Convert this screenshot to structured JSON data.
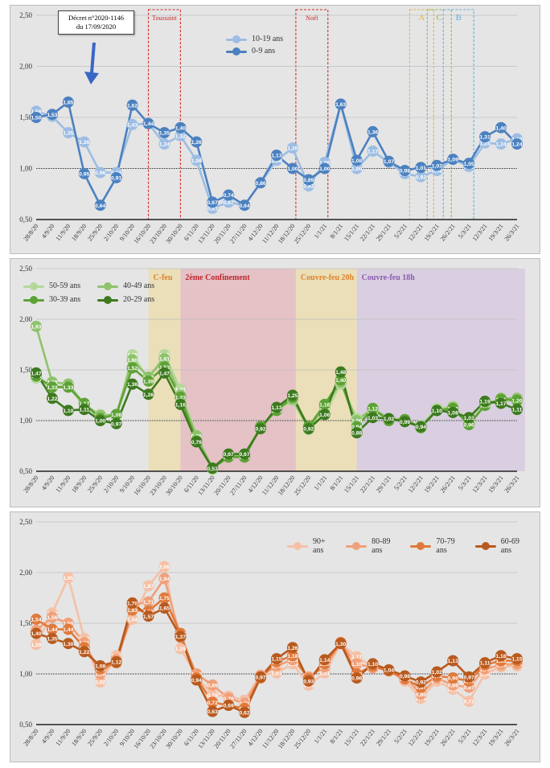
{
  "dates": [
    "28/8/20",
    "4/9/20",
    "11/9/20",
    "18/9/20",
    "25/9/20",
    "2/10/20",
    "9/10/20",
    "16/10/20",
    "23/10/20",
    "30/10/20",
    "6/11/20",
    "13/11/20",
    "20/11/20",
    "27/11/20",
    "4/12/20",
    "11/12/20",
    "18/12/20",
    "25/12/20",
    "1/1/21",
    "8/1/21",
    "15/1/21",
    "22/1/21",
    "29/1/21",
    "5/2/21",
    "12/2/21",
    "19/2/21",
    "26/2/21",
    "5/3/21",
    "12/3/21",
    "19/3/21",
    "26/3/21"
  ],
  "y_ticks": [
    "0,50",
    "1,00",
    "1,50",
    "2,00",
    "2,50"
  ],
  "colors": {
    "reference_line": "#444444",
    "grid": "#bfbfbf",
    "axis": "#222222"
  },
  "chart_data": [
    {
      "type": "line",
      "ylim": [
        0.5,
        2.5
      ],
      "reference_value": 1.0,
      "annotation": {
        "line1": "Décret n°2020-1146",
        "line2": "du 17/09/2020"
      },
      "periods": [
        {
          "label": "Toussaint",
          "from": 7.0,
          "to": 9.0,
          "style": "dashed",
          "color": "#cc2a2a"
        },
        {
          "label": "Noël",
          "from": 16.2,
          "to": 18.2,
          "style": "dashed",
          "color": "#cc2a2a"
        },
        {
          "label": "A",
          "from": 23.3,
          "to": 24.8,
          "style": "dashed",
          "color": "#e0b347"
        },
        {
          "label": "C",
          "from": 24.4,
          "to": 25.9,
          "style": "dashed",
          "color": "#8cb84a"
        },
        {
          "label": "B",
          "from": 25.4,
          "to": 27.3,
          "style": "dashed",
          "color": "#5ab0e0"
        }
      ],
      "series": [
        {
          "name": "10-19 ans",
          "color": "#9dbde3",
          "values": [
            1.56,
            1.51,
            1.35,
            1.26,
            0.96,
            0.96,
            1.43,
            1.44,
            1.24,
            1.32,
            1.08,
            0.61,
            0.67,
            0.64,
            0.86,
            1.08,
            1.2,
            0.83,
            1.06,
            1.63,
            1.0,
            1.17,
            1.06,
            0.95,
            0.92,
            0.98,
            1.09,
            1.02,
            1.25,
            1.24,
            1.29
          ],
          "labels": [
            "1,56",
            "1,51",
            "1,35",
            "1,26",
            "0,96",
            "0,96",
            "1,43",
            "1,44",
            "1,24",
            "1,32",
            "1,08",
            "0,61",
            "0,67",
            "0,64",
            "0,86",
            "1,08",
            "1,20",
            "0,83",
            "1,06",
            "1,63",
            "1,00",
            "1,17",
            "1,06",
            "0,95",
            "0,92",
            "0,98",
            "1,09",
            "1,02",
            "1,25",
            "1,24",
            "1,29"
          ]
        },
        {
          "name": "0-9 ans",
          "color": "#4c81c0",
          "values": [
            1.5,
            1.53,
            1.65,
            0.95,
            0.64,
            0.91,
            1.62,
            1.44,
            1.35,
            1.4,
            1.26,
            0.67,
            0.74,
            0.64,
            0.86,
            1.13,
            1.0,
            0.89,
            1.0,
            1.63,
            1.08,
            1.36,
            1.07,
            0.98,
            1.01,
            1.03,
            1.09,
            1.05,
            1.31,
            1.4,
            1.24
          ],
          "labels": [
            "1,50",
            "1,53",
            "1,65",
            "0,95",
            "0,64",
            "0,91",
            "1,62",
            "1,44",
            "1,35",
            "1,40",
            "1,26",
            "0,67",
            "0,74",
            "0,64",
            "0,86",
            "1,13",
            "1,00",
            "0,89",
            "1,00",
            "1,63",
            "1,08",
            "1,36",
            "1,07",
            "0,98",
            "1,01",
            "1,03",
            "1,09",
            "1,05",
            "1,31",
            "1,40",
            "1,24"
          ]
        }
      ]
    },
    {
      "type": "line",
      "ylim": [
        0.5,
        2.5
      ],
      "reference_value": 1.0,
      "periods": [
        {
          "label": "C-feu",
          "from": 7.0,
          "to": 9.0,
          "fill": "#eadfb8",
          "text_color": "#e0822a"
        },
        {
          "label": "2ème Confinement",
          "from": 9.0,
          "to": 16.2,
          "fill": "#e4c2c6",
          "text_color": "#c0262d"
        },
        {
          "label": "Couvre-feu 20h",
          "from": 16.2,
          "to": 20.0,
          "fill": "#eadfb8",
          "text_color": "#e0822a"
        },
        {
          "label": "Couvre-feu 18h",
          "from": 20.0,
          "to": 30.5,
          "fill": "#d9cfe0",
          "text_color": "#8a5cb0"
        }
      ],
      "series": [
        {
          "name": "50-59 ans",
          "color": "#b5d89a",
          "values": [
            1.42,
            1.33,
            1.35,
            1.13,
            1.06,
            1.03,
            1.65,
            1.41,
            1.65,
            1.31,
            0.85,
            0.52,
            0.67,
            0.67,
            0.94,
            1.1,
            1.2,
            0.91,
            1.06,
            1.36,
            1.02,
            1.1,
            1.01,
            1.0,
            0.95,
            1.12,
            1.14,
            0.98,
            1.16,
            1.2,
            1.19
          ],
          "labels": [
            "1,42",
            "1,33",
            "1,35",
            "1,13",
            "1,06",
            "1,03",
            "1,65",
            "1,41",
            "1,65",
            "1,31",
            "0,85",
            "0,52",
            "0,67",
            "0,67",
            "0,94",
            "1,10",
            "1,20",
            "0,91",
            "1,06",
            "1,36",
            "1,02",
            "1,10",
            "1,01",
            "1,00",
            "0,95",
            "1,12",
            "1,14",
            "0,98",
            "1,16",
            "1,20",
            "1,19"
          ]
        },
        {
          "name": "40-49 ans",
          "color": "#8fc26c",
          "values": [
            1.93,
            1.38,
            1.36,
            1.16,
            1.05,
            1.06,
            1.6,
            1.43,
            1.61,
            1.25,
            0.85,
            0.53,
            0.66,
            0.64,
            0.94,
            1.11,
            1.21,
            0.93,
            1.13,
            1.38,
            1.0,
            1.12,
            1.02,
            1.01,
            0.93,
            1.1,
            1.13,
            0.97,
            1.15,
            1.22,
            1.22
          ],
          "labels": [
            "1,93",
            "1,38",
            "1,36",
            "1,16",
            "1,05",
            "1,06",
            "1,60",
            "1,43",
            "1,61",
            "1,25",
            "0,85",
            "0,53",
            "0,66",
            "0,64",
            "0,94",
            "1,11",
            "1,21",
            "0,93",
            "1,13",
            "1,38",
            "1,00",
            "1,12",
            "1,02",
            "1,01",
            "0,93",
            "1,10",
            "1,13",
            "0,97",
            "1,15",
            "1,22",
            "1,22"
          ]
        },
        {
          "name": "30-39 ans",
          "color": "#5ea236",
          "values": [
            1.44,
            1.33,
            1.33,
            1.17,
            1.02,
            1.06,
            1.52,
            1.39,
            1.53,
            1.23,
            0.8,
            0.53,
            0.64,
            0.64,
            0.94,
            1.1,
            1.23,
            0.94,
            1.16,
            1.4,
            0.94,
            1.12,
            1.0,
            1.01,
            0.93,
            1.1,
            1.12,
            0.96,
            1.15,
            1.21,
            1.2
          ],
          "labels": [
            "1,44",
            "1,33",
            "1,33",
            "1,17",
            "1,02",
            "1,06",
            "1,52",
            "1,39",
            "1,53",
            "1,23",
            "0,80",
            "0,53",
            "0,64",
            "0,64",
            "0,94",
            "1,10",
            "1,23",
            "0,94",
            "1,16",
            "1,40",
            "0,94",
            "1,12",
            "1,00",
            "1,01",
            "0,93",
            "1,10",
            "1,12",
            "0,96",
            "1,15",
            "1,21",
            "1,20"
          ]
        },
        {
          "name": "20-29 ans",
          "color": "#3d7a1f",
          "values": [
            1.47,
            1.22,
            1.1,
            1.11,
            1.0,
            0.97,
            1.36,
            1.26,
            1.47,
            1.16,
            0.79,
            0.53,
            0.67,
            0.67,
            0.92,
            1.13,
            1.25,
            0.92,
            1.06,
            1.48,
            0.88,
            1.03,
            1.02,
            0.99,
            0.94,
            1.1,
            1.08,
            1.03,
            1.19,
            1.17,
            1.11
          ],
          "labels": [
            "1,47",
            "1,22",
            "1,10",
            "1,11",
            "1,00",
            "0,97",
            "1,36",
            "1,26",
            "1,47",
            "1,16",
            "0,79",
            "0,53",
            "0,67",
            "0,67",
            "0,92",
            "1,13",
            "1,25",
            "0,92",
            "1,06",
            "1,48",
            "0,88",
            "1,03",
            "1,02",
            "0,99",
            "0,94",
            "1,10",
            "1,08",
            "1,03",
            "1,19",
            "1,17",
            "1,11"
          ]
        }
      ]
    },
    {
      "type": "line",
      "ylim": [
        0.5,
        2.5
      ],
      "reference_value": 1.0,
      "series": [
        {
          "name": "90+ ans",
          "color": "#f5c1a6",
          "values": [
            1.29,
            1.6,
            1.95,
            1.35,
            0.92,
            1.18,
            1.54,
            1.87,
            2.06,
            1.25,
            0.98,
            0.79,
            0.78,
            0.74,
            0.99,
            1.01,
            1.1,
            0.89,
            1.01,
            1.3,
            1.17,
            1.07,
            1.03,
            0.93,
            0.76,
            0.93,
            0.85,
            0.73,
            1.0,
            1.07,
            1.08
          ],
          "labels": [
            "1,29",
            "1,60",
            "1,95",
            "1,35",
            "0,92",
            "1,18",
            "1,54",
            "1,87",
            "2,06",
            "1,25",
            "0,98",
            "0,79",
            "0,78",
            "0,74",
            "0,99",
            "1,01",
            "1,10",
            "0,89",
            "1,01",
            "1,30",
            "1,17",
            "1,07",
            "1,03",
            "0,93",
            "0,76",
            "0,93",
            "0,85",
            "0,73",
            "1,00",
            "1,07",
            "1,08"
          ]
        },
        {
          "name": "80-89 ans",
          "color": "#f0a07a",
          "values": [
            1.43,
            1.56,
            1.5,
            1.31,
            1.0,
            1.14,
            1.68,
            1.71,
            1.94,
            1.36,
            1.0,
            0.89,
            0.76,
            0.71,
            0.98,
            1.08,
            1.14,
            0.97,
            1.07,
            1.3,
            1.1,
            1.06,
            1.04,
            0.97,
            0.8,
            0.96,
            0.89,
            0.87,
            1.05,
            1.09,
            1.1
          ],
          "labels": [
            "1,43",
            "1,56",
            "1,50",
            "1,31",
            "1,00",
            "1,14",
            "1,68",
            "1,71",
            "1,94",
            "1,36",
            "1,00",
            "0,89",
            "0,76",
            "0,71",
            "0,98",
            "1,08",
            "1,14",
            "0,97",
            "1,07",
            "1,30",
            "1,10",
            "1,06",
            "1,04",
            "0,97",
            "0,80",
            "0,96",
            "0,89",
            "0,87",
            "1,05",
            "1,09",
            "1,10"
          ]
        },
        {
          "name": "70-79 ans",
          "color": "#e07a3c",
          "values": [
            1.54,
            1.44,
            1.44,
            1.26,
            1.05,
            1.11,
            1.63,
            1.62,
            1.75,
            1.4,
            0.96,
            0.72,
            0.69,
            0.66,
            0.96,
            1.12,
            1.18,
            0.95,
            1.1,
            1.31,
            1.0,
            1.08,
            1.03,
            0.95,
            0.87,
            0.98,
            0.96,
            0.93,
            1.09,
            1.13,
            1.13
          ],
          "labels": [
            "1,54",
            "1,44",
            "1,44",
            "1,26",
            "1,05",
            "1,11",
            "1,63",
            "1,62",
            "1,75",
            "1,40",
            "0,96",
            "0,72",
            "0,69",
            "0,66",
            "0,96",
            "1,12",
            "1,18",
            "0,95",
            "1,10",
            "1,31",
            "1,00",
            "1,08",
            "1,03",
            "0,95",
            "0,87",
            "0,98",
            "0,96",
            "0,93",
            "1,09",
            "1,13",
            "1,13"
          ]
        },
        {
          "name": "60-69 ans",
          "color": "#b85a1e",
          "values": [
            1.4,
            1.35,
            1.3,
            1.22,
            1.08,
            1.12,
            1.7,
            1.57,
            1.65,
            1.37,
            0.94,
            0.63,
            0.69,
            0.62,
            0.97,
            1.15,
            1.26,
            0.93,
            1.14,
            1.3,
            0.96,
            1.1,
            1.04,
            0.98,
            0.92,
            1.02,
            1.13,
            0.97,
            1.11,
            1.18,
            1.15
          ],
          "labels": [
            "1,40",
            "1,35",
            "1,30",
            "1,22",
            "1,08",
            "1,12",
            "1,70",
            "1,57",
            "1,65",
            "1,37",
            "0,94",
            "0,63",
            "0,69",
            "0,62",
            "0,97",
            "1,15",
            "1,26",
            "0,93",
            "1,14",
            "1,30",
            "0,96",
            "1,10",
            "1,04",
            "0,98",
            "0,92",
            "1,02",
            "1,13",
            "0,97",
            "1,11",
            "1,18",
            "1,15"
          ]
        }
      ]
    }
  ]
}
